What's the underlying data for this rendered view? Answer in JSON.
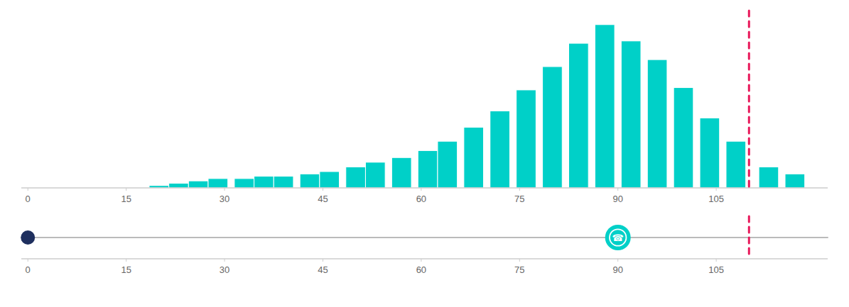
{
  "chart_data": {
    "type": "bar",
    "x": [
      20,
      23,
      26,
      29,
      33,
      36,
      39,
      43,
      46,
      50,
      53,
      57,
      61,
      64,
      68,
      72,
      76,
      80,
      84,
      88,
      92,
      96,
      100,
      104,
      108,
      113,
      117
    ],
    "values": [
      1,
      2,
      3,
      4,
      4,
      5,
      5,
      6,
      7,
      9,
      11,
      13,
      16,
      20,
      26,
      33,
      42,
      52,
      62,
      70,
      63,
      55,
      43,
      30,
      20,
      9,
      6
    ],
    "color": "#00D0C8",
    "xlim": [
      -1,
      122
    ],
    "xticks": [
      0,
      15,
      30,
      45,
      60,
      75,
      90,
      105
    ],
    "ylim": [
      0,
      76
    ],
    "grid": false,
    "tick_labels": "x",
    "vline_x": 110,
    "vline_color": "#E8185A",
    "timeline": {
      "x": [
        0,
        90
      ],
      "colors": [
        "#1e2f5e",
        "#00D0C8"
      ],
      "icons": [
        null,
        "☎"
      ]
    }
  }
}
